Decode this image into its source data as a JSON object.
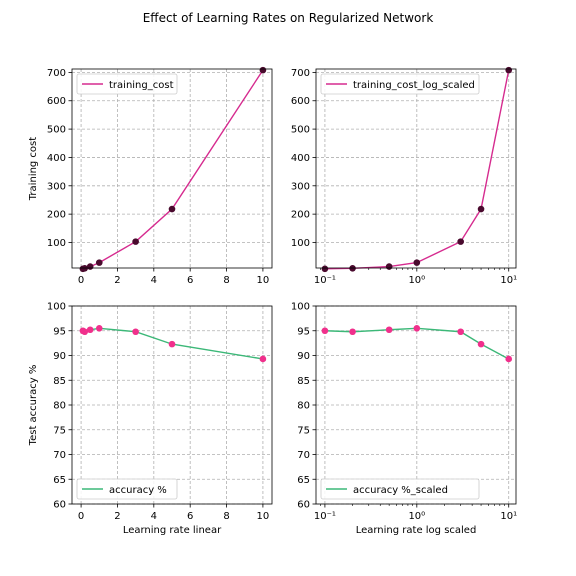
{
  "title": "Effect of Learning Rates on Regularized Network",
  "colors": {
    "cost_line": "#d62b8f",
    "cost_marker": "#4a0a2e",
    "acc_line": "#3cb878",
    "acc_marker": "#f0308c",
    "grid": "#b0b0b0"
  },
  "chart_data": [
    {
      "type": "line",
      "series": [
        {
          "name": "training_cost",
          "x": [
            0.1,
            0.2,
            0.5,
            1,
            3,
            5,
            10
          ],
          "values": [
            7,
            9,
            15,
            29,
            103,
            218,
            708
          ]
        }
      ],
      "xscale": "linear",
      "xlim": [
        -0.5,
        10.5
      ],
      "ylim": [
        10,
        712
      ],
      "xticks": [
        0,
        2,
        4,
        6,
        8,
        10
      ],
      "xtick_labels": [
        "0",
        "2",
        "4",
        "6",
        "8",
        "10"
      ],
      "yticks": [
        100,
        200,
        300,
        400,
        500,
        600,
        700
      ],
      "ytick_labels": [
        "100",
        "200",
        "300",
        "400",
        "500",
        "600",
        "700"
      ],
      "xlabel": "",
      "ylabel": "Training cost",
      "grid": true,
      "legend": "top-left"
    },
    {
      "type": "line",
      "series": [
        {
          "name": "training_cost_log_scaled",
          "x": [
            0.1,
            0.2,
            0.5,
            1,
            3,
            5,
            10
          ],
          "values": [
            7,
            9,
            15,
            29,
            103,
            218,
            708
          ]
        }
      ],
      "xscale": "log",
      "xlim": [
        0.08,
        12
      ],
      "ylim": [
        10,
        712
      ],
      "xticks": [
        0.1,
        1,
        10
      ],
      "xtick_labels": [
        "10⁻¹",
        "10⁰",
        "10¹"
      ],
      "yticks": [
        100,
        200,
        300,
        400,
        500,
        600,
        700
      ],
      "ytick_labels": [
        "100",
        "200",
        "300",
        "400",
        "500",
        "600",
        "700"
      ],
      "xlabel": "",
      "ylabel": "",
      "grid": true,
      "legend": "top-left"
    },
    {
      "type": "line",
      "series": [
        {
          "name": "accuracy %",
          "x": [
            0.1,
            0.2,
            0.5,
            1,
            3,
            5,
            10
          ],
          "values": [
            95.0,
            94.8,
            95.2,
            95.5,
            94.8,
            92.3,
            89.3
          ]
        }
      ],
      "xscale": "linear",
      "xlim": [
        -0.5,
        10.5
      ],
      "ylim": [
        60,
        100
      ],
      "xticks": [
        0,
        2,
        4,
        6,
        8,
        10
      ],
      "xtick_labels": [
        "0",
        "2",
        "4",
        "6",
        "8",
        "10"
      ],
      "yticks": [
        60,
        65,
        70,
        75,
        80,
        85,
        90,
        95,
        100
      ],
      "ytick_labels": [
        "60",
        "65",
        "70",
        "75",
        "80",
        "85",
        "90",
        "95",
        "100"
      ],
      "xlabel": "Learning rate linear",
      "ylabel": "Test accuracy %",
      "grid": true,
      "legend": "bottom-left"
    },
    {
      "type": "line",
      "series": [
        {
          "name": "accuracy %_scaled",
          "x": [
            0.1,
            0.2,
            0.5,
            1,
            3,
            5,
            10
          ],
          "values": [
            95.0,
            94.8,
            95.2,
            95.5,
            94.8,
            92.3,
            89.3
          ]
        }
      ],
      "xscale": "log",
      "xlim": [
        0.08,
        12
      ],
      "ylim": [
        60,
        100
      ],
      "xticks": [
        0.1,
        1,
        10
      ],
      "xtick_labels": [
        "10⁻¹",
        "10⁰",
        "10¹"
      ],
      "yticks": [
        60,
        65,
        70,
        75,
        80,
        85,
        90,
        95,
        100
      ],
      "ytick_labels": [
        "60",
        "65",
        "70",
        "75",
        "80",
        "85",
        "90",
        "95",
        "100"
      ],
      "xlabel": "Learning rate log scaled",
      "ylabel": "",
      "grid": true,
      "legend": "bottom-left"
    }
  ]
}
